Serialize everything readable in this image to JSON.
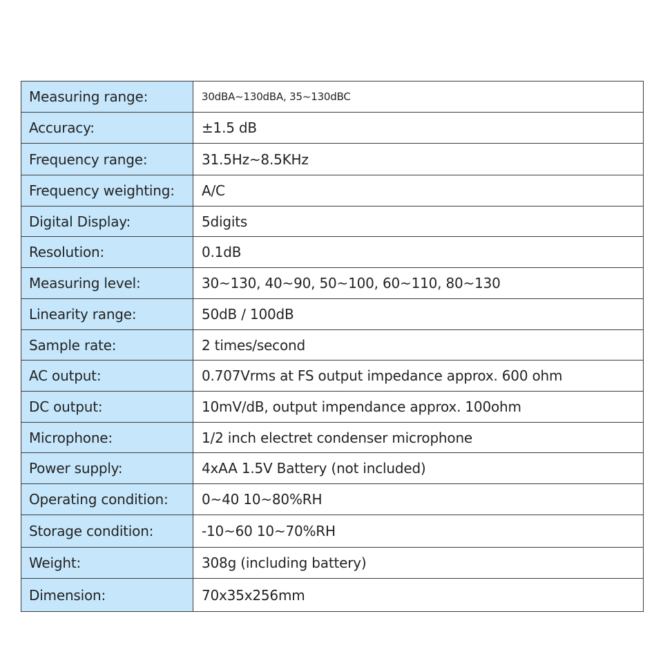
{
  "colors": {
    "label_bg": "#c6e7fb",
    "border": "#3a3a3a",
    "text": "#222222"
  },
  "specs": [
    {
      "label": "Measuring range:",
      "value": "30dBA~130dBA, 35~130dBC"
    },
    {
      "label": "Accuracy:",
      "value": "±1.5 dB"
    },
    {
      "label": "Frequency range:",
      "value": "31.5Hz~8.5KHz"
    },
    {
      "label": "Frequency weighting:",
      "value": "A/C"
    },
    {
      "label": "Digital Display:",
      "value": "5digits"
    },
    {
      "label": "Resolution:",
      "value": "0.1dB"
    },
    {
      "label": "Measuring level:",
      "value": "30~130, 40~90, 50~100, 60~110, 80~130"
    },
    {
      "label": "Linearity range:",
      "value": "50dB / 100dB"
    },
    {
      "label": "Sample rate:",
      "value": "2 times/second"
    },
    {
      "label": "AC output:",
      "value": "0.707Vrms at FS output impedance approx. 600 ohm"
    },
    {
      "label": "DC output:",
      "value": "10mV/dB, output impendance approx. 100ohm"
    },
    {
      "label": "Microphone:",
      "value": "1/2 inch electret condenser microphone"
    },
    {
      "label": "Power supply:",
      "value": "4xAA 1.5V Battery (not included)"
    },
    {
      "label": "Operating condition:",
      "value": "0~40 10~80%RH"
    },
    {
      "label": "Storage condition:",
      "value": "-10~60 10~70%RH"
    },
    {
      "label": "Weight:",
      "value": "308g (including battery)"
    },
    {
      "label": "Dimension:",
      "value": "70x35x256mm"
    }
  ]
}
